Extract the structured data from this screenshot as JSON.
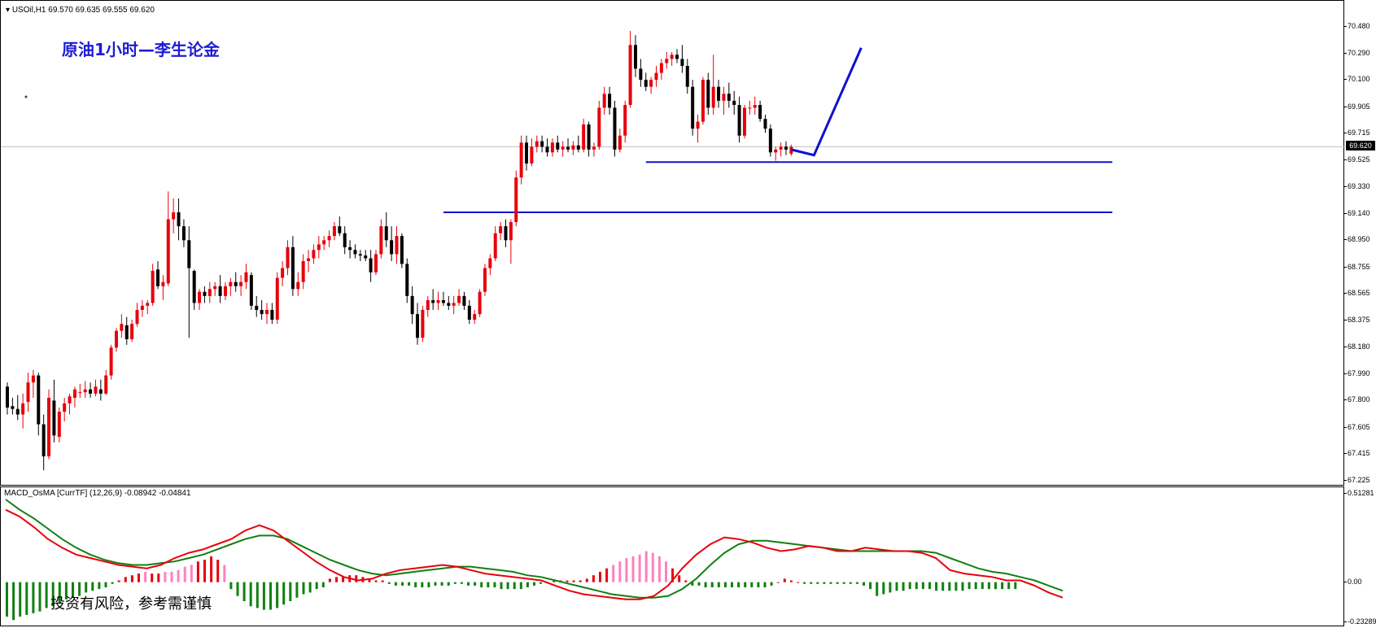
{
  "chart_header": {
    "symbol_label": "USOil,H1",
    "ohlc": "69.570 69.635 69.555 69.620"
  },
  "annotation": {
    "title": "原油1小时—李生论金",
    "risk_note": "投资有风险，参考需谨慎"
  },
  "indicator_header": {
    "label": "MACD_OsMA [CurrTF] (12,26,9) -0.08942 -0.04841"
  },
  "price_axis": {
    "ticks": [
      "70.480",
      "70.290",
      "70.100",
      "69.905",
      "69.715",
      "69.525",
      "69.330",
      "69.140",
      "68.950",
      "68.755",
      "68.565",
      "68.375",
      "68.180",
      "67.990",
      "67.800",
      "67.605",
      "67.415",
      "67.225"
    ],
    "current_price": "69.620"
  },
  "macd_axis": {
    "ticks": [
      "0.51281",
      "0.00",
      "-0.23289"
    ]
  },
  "colors": {
    "bull": "#e8000b",
    "bear": "#000000",
    "drawing": "#1010d0",
    "macd_main": "#e8000b",
    "macd_signal": "#108010",
    "osma_pos": "#e8000b",
    "osma_neg": "#108010",
    "osma_pink": "#ff80c0"
  },
  "chart_data": {
    "type": "candlestick",
    "price_range": [
      67.225,
      70.48
    ],
    "current_price": 69.62,
    "support_lines": [
      69.51,
      69.15
    ],
    "candles": [
      [
        67.9,
        67.93,
        67.7,
        67.75
      ],
      [
        67.76,
        67.82,
        67.7,
        67.74
      ],
      [
        67.74,
        67.84,
        67.66,
        67.7
      ],
      [
        67.7,
        67.85,
        67.6,
        67.78
      ],
      [
        67.79,
        68.0,
        67.72,
        67.93
      ],
      [
        67.93,
        68.02,
        67.82,
        67.98
      ],
      [
        67.98,
        68.0,
        67.55,
        67.63
      ],
      [
        67.63,
        67.7,
        67.3,
        67.4
      ],
      [
        67.4,
        67.88,
        67.38,
        67.82
      ],
      [
        67.8,
        67.95,
        67.5,
        67.55
      ],
      [
        67.54,
        67.75,
        67.5,
        67.72
      ],
      [
        67.72,
        67.82,
        67.65,
        67.78
      ],
      [
        67.78,
        67.85,
        67.7,
        67.83
      ],
      [
        67.82,
        67.9,
        67.75,
        67.88
      ],
      [
        67.86,
        67.92,
        67.82,
        67.86
      ],
      [
        67.86,
        67.94,
        67.82,
        67.88
      ],
      [
        67.88,
        67.93,
        67.82,
        67.85
      ],
      [
        67.85,
        67.95,
        67.83,
        67.9
      ],
      [
        67.88,
        67.95,
        67.8,
        67.85
      ],
      [
        67.85,
        68.02,
        67.84,
        67.98
      ],
      [
        67.98,
        68.2,
        67.95,
        68.18
      ],
      [
        68.18,
        68.32,
        68.15,
        68.3
      ],
      [
        68.3,
        68.42,
        68.25,
        68.35
      ],
      [
        68.34,
        68.4,
        68.2,
        68.24
      ],
      [
        68.24,
        68.38,
        68.22,
        68.35
      ],
      [
        68.35,
        68.5,
        68.33,
        68.45
      ],
      [
        68.45,
        68.52,
        68.4,
        68.48
      ],
      [
        68.48,
        68.52,
        68.42,
        68.5
      ],
      [
        68.5,
        68.78,
        68.48,
        68.73
      ],
      [
        68.74,
        68.8,
        68.6,
        68.62
      ],
      [
        68.62,
        68.7,
        68.52,
        68.65
      ],
      [
        68.64,
        69.3,
        68.62,
        69.1
      ],
      [
        69.1,
        69.25,
        69.0,
        69.15
      ],
      [
        69.15,
        69.25,
        68.95,
        69.05
      ],
      [
        69.05,
        69.1,
        68.9,
        68.95
      ],
      [
        68.95,
        69.05,
        68.25,
        68.75
      ],
      [
        68.73,
        68.74,
        68.45,
        68.5
      ],
      [
        68.5,
        68.6,
        68.45,
        68.58
      ],
      [
        68.58,
        68.62,
        68.5,
        68.55
      ],
      [
        68.55,
        68.65,
        68.5,
        68.6
      ],
      [
        68.6,
        68.65,
        68.55,
        68.62
      ],
      [
        68.62,
        68.7,
        68.5,
        68.55
      ],
      [
        68.55,
        68.65,
        68.52,
        68.62
      ],
      [
        68.62,
        68.68,
        68.55,
        68.65
      ],
      [
        68.65,
        68.72,
        68.58,
        68.62
      ],
      [
        68.62,
        68.7,
        68.55,
        68.65
      ],
      [
        68.65,
        68.78,
        68.6,
        68.72
      ],
      [
        68.7,
        68.72,
        68.45,
        68.48
      ],
      [
        68.48,
        68.55,
        68.4,
        68.45
      ],
      [
        68.45,
        68.52,
        68.38,
        68.42
      ],
      [
        68.42,
        68.5,
        68.35,
        68.45
      ],
      [
        68.45,
        68.5,
        68.35,
        68.38
      ],
      [
        68.38,
        68.72,
        68.35,
        68.68
      ],
      [
        68.68,
        68.8,
        68.62,
        68.75
      ],
      [
        68.75,
        68.95,
        68.7,
        68.9
      ],
      [
        68.9,
        68.98,
        68.55,
        68.6
      ],
      [
        68.6,
        68.72,
        68.55,
        68.65
      ],
      [
        68.65,
        68.85,
        68.6,
        68.8
      ],
      [
        68.8,
        68.88,
        68.72,
        68.82
      ],
      [
        68.82,
        68.92,
        68.78,
        68.88
      ],
      [
        68.88,
        68.98,
        68.82,
        68.92
      ],
      [
        68.92,
        68.98,
        68.88,
        68.95
      ],
      [
        68.95,
        69.02,
        68.9,
        68.98
      ],
      [
        68.98,
        69.08,
        68.95,
        69.05
      ],
      [
        69.05,
        69.12,
        68.98,
        69.0
      ],
      [
        69.0,
        69.05,
        68.85,
        68.9
      ],
      [
        68.9,
        68.95,
        68.82,
        68.88
      ],
      [
        68.88,
        68.92,
        68.82,
        68.85
      ],
      [
        68.85,
        68.88,
        68.8,
        68.84
      ],
      [
        68.84,
        68.88,
        68.8,
        68.82
      ],
      [
        68.82,
        68.88,
        68.65,
        68.72
      ],
      [
        68.72,
        68.88,
        68.7,
        68.85
      ],
      [
        68.85,
        69.1,
        68.82,
        69.05
      ],
      [
        69.05,
        69.15,
        68.9,
        68.95
      ],
      [
        68.95,
        69.05,
        68.8,
        68.85
      ],
      [
        68.85,
        69.05,
        68.78,
        68.98
      ],
      [
        68.98,
        69.0,
        68.75,
        68.78
      ],
      [
        68.78,
        68.82,
        68.5,
        68.55
      ],
      [
        68.55,
        68.62,
        68.35,
        68.42
      ],
      [
        68.42,
        68.5,
        68.2,
        68.25
      ],
      [
        68.25,
        68.48,
        68.22,
        68.45
      ],
      [
        68.45,
        68.55,
        68.4,
        68.52
      ],
      [
        68.52,
        68.6,
        68.45,
        68.5
      ],
      [
        68.5,
        68.58,
        68.45,
        68.52
      ],
      [
        68.52,
        68.58,
        68.48,
        68.5
      ],
      [
        68.5,
        68.55,
        68.45,
        68.48
      ],
      [
        68.48,
        68.55,
        68.42,
        68.5
      ],
      [
        68.5,
        68.6,
        68.48,
        68.55
      ],
      [
        68.55,
        68.58,
        68.45,
        68.48
      ],
      [
        68.48,
        68.52,
        68.35,
        68.38
      ],
      [
        68.38,
        68.45,
        68.35,
        68.42
      ],
      [
        68.42,
        68.6,
        68.4,
        68.58
      ],
      [
        68.58,
        68.78,
        68.55,
        68.75
      ],
      [
        68.75,
        68.85,
        68.7,
        68.82
      ],
      [
        68.82,
        69.05,
        68.8,
        69.0
      ],
      [
        69.0,
        69.08,
        68.95,
        69.05
      ],
      [
        69.05,
        69.1,
        68.9,
        68.95
      ],
      [
        68.95,
        69.1,
        68.78,
        69.08
      ],
      [
        69.08,
        69.45,
        69.05,
        69.4
      ],
      [
        69.4,
        69.7,
        69.35,
        69.65
      ],
      [
        69.65,
        69.7,
        69.45,
        69.5
      ],
      [
        69.5,
        69.68,
        69.48,
        69.62
      ],
      [
        69.62,
        69.7,
        69.58,
        69.66
      ],
      [
        69.66,
        69.7,
        69.58,
        69.62
      ],
      [
        69.62,
        69.68,
        69.55,
        69.58
      ],
      [
        69.58,
        69.68,
        69.55,
        69.65
      ],
      [
        69.65,
        69.7,
        69.58,
        69.6
      ],
      [
        69.6,
        69.66,
        69.55,
        69.62
      ],
      [
        69.62,
        69.68,
        69.58,
        69.6
      ],
      [
        69.6,
        69.66,
        69.56,
        69.63
      ],
      [
        69.63,
        69.7,
        69.58,
        69.6
      ],
      [
        69.6,
        69.82,
        69.58,
        69.78
      ],
      [
        69.78,
        69.8,
        69.55,
        69.6
      ],
      [
        69.6,
        69.65,
        69.55,
        69.62
      ],
      [
        69.62,
        69.95,
        69.6,
        69.9
      ],
      [
        69.9,
        70.05,
        69.85,
        70.0
      ],
      [
        70.0,
        70.05,
        69.85,
        69.9
      ],
      [
        69.9,
        69.95,
        69.55,
        69.6
      ],
      [
        69.6,
        69.75,
        69.58,
        69.7
      ],
      [
        69.7,
        69.95,
        69.65,
        69.92
      ],
      [
        69.92,
        70.45,
        69.9,
        70.35
      ],
      [
        70.35,
        70.42,
        70.12,
        70.18
      ],
      [
        70.18,
        70.25,
        70.05,
        70.1
      ],
      [
        70.1,
        70.15,
        70.02,
        70.05
      ],
      [
        70.05,
        70.12,
        70.0,
        70.1
      ],
      [
        70.1,
        70.2,
        70.05,
        70.15
      ],
      [
        70.15,
        70.25,
        70.1,
        70.22
      ],
      [
        70.22,
        70.3,
        70.18,
        70.25
      ],
      [
        70.25,
        70.3,
        70.2,
        70.28
      ],
      [
        70.28,
        70.32,
        70.22,
        70.25
      ],
      [
        70.25,
        70.35,
        70.15,
        70.2
      ],
      [
        70.2,
        70.25,
        70.0,
        70.05
      ],
      [
        70.05,
        70.1,
        69.7,
        69.75
      ],
      [
        69.75,
        69.85,
        69.65,
        69.8
      ],
      [
        69.8,
        70.12,
        69.78,
        70.1
      ],
      [
        70.1,
        70.15,
        69.85,
        69.9
      ],
      [
        69.9,
        70.28,
        69.85,
        70.05
      ],
      [
        70.05,
        70.1,
        69.9,
        69.95
      ],
      [
        69.95,
        70.05,
        69.85,
        70.0
      ],
      [
        70.0,
        70.08,
        69.9,
        69.95
      ],
      [
        69.95,
        70.02,
        69.85,
        69.92
      ],
      [
        69.92,
        69.98,
        69.65,
        69.7
      ],
      [
        69.7,
        69.92,
        69.68,
        69.9
      ],
      [
        69.9,
        69.95,
        69.85,
        69.9
      ],
      [
        69.9,
        69.98,
        69.85,
        69.92
      ],
      [
        69.92,
        69.95,
        69.8,
        69.82
      ],
      [
        69.82,
        69.85,
        69.72,
        69.75
      ],
      [
        69.75,
        69.78,
        69.55,
        69.58
      ],
      [
        69.58,
        69.62,
        69.52,
        69.6
      ],
      [
        69.6,
        69.65,
        69.55,
        69.62
      ],
      [
        69.62,
        69.66,
        69.56,
        69.6
      ],
      [
        69.57,
        69.635,
        69.555,
        69.62
      ]
    ],
    "macd_range": [
      -0.23289,
      0.51281
    ],
    "macd_main": [
      0.42,
      0.38,
      0.32,
      0.25,
      0.2,
      0.16,
      0.14,
      0.12,
      0.1,
      0.09,
      0.08,
      0.1,
      0.14,
      0.17,
      0.19,
      0.22,
      0.25,
      0.3,
      0.33,
      0.3,
      0.24,
      0.18,
      0.12,
      0.07,
      0.03,
      0.01,
      0.02,
      0.05,
      0.07,
      0.08,
      0.09,
      0.1,
      0.09,
      0.07,
      0.05,
      0.04,
      0.03,
      0.02,
      0.01,
      -0.02,
      -0.05,
      -0.07,
      -0.08,
      -0.09,
      -0.1,
      -0.1,
      -0.08,
      -0.02,
      0.08,
      0.16,
      0.22,
      0.26,
      0.25,
      0.23,
      0.2,
      0.18,
      0.19,
      0.21,
      0.2,
      0.18,
      0.18,
      0.2,
      0.19,
      0.18,
      0.18,
      0.17,
      0.14,
      0.07,
      0.05,
      0.04,
      0.03,
      0.01,
      0.01,
      -0.02,
      -0.06,
      -0.09
    ],
    "macd_signal": [
      0.48,
      0.42,
      0.37,
      0.31,
      0.25,
      0.2,
      0.16,
      0.13,
      0.11,
      0.1,
      0.1,
      0.11,
      0.12,
      0.14,
      0.16,
      0.19,
      0.22,
      0.25,
      0.27,
      0.27,
      0.25,
      0.21,
      0.17,
      0.13,
      0.1,
      0.07,
      0.05,
      0.04,
      0.05,
      0.06,
      0.07,
      0.08,
      0.09,
      0.09,
      0.08,
      0.07,
      0.06,
      0.04,
      0.03,
      0.01,
      -0.01,
      -0.03,
      -0.05,
      -0.07,
      -0.08,
      -0.09,
      -0.09,
      -0.08,
      -0.04,
      0.02,
      0.1,
      0.17,
      0.22,
      0.24,
      0.24,
      0.23,
      0.22,
      0.21,
      0.2,
      0.19,
      0.18,
      0.18,
      0.18,
      0.18,
      0.18,
      0.18,
      0.17,
      0.14,
      0.11,
      0.08,
      0.06,
      0.05,
      0.03,
      0.01,
      -0.02,
      -0.05
    ],
    "osma": [
      -0.2,
      -0.22,
      -0.2,
      -0.19,
      -0.18,
      -0.17,
      -0.15,
      -0.14,
      -0.12,
      -0.1,
      -0.09,
      -0.08,
      -0.06,
      -0.05,
      -0.04,
      -0.03,
      -0.01,
      0.01,
      0.03,
      0.04,
      0.05,
      0.06,
      0.05,
      0.05,
      0.06,
      0.06,
      0.07,
      0.09,
      0.1,
      0.12,
      0.13,
      0.15,
      0.13,
      0.1,
      -0.04,
      -0.08,
      -0.11,
      -0.14,
      -0.15,
      -0.16,
      -0.16,
      -0.15,
      -0.13,
      -0.11,
      -0.09,
      -0.07,
      -0.06,
      -0.04,
      -0.03,
      0.02,
      0.03,
      0.03,
      0.04,
      0.04,
      0.03,
      0.02,
      0.01,
      0.01,
      -0.01,
      -0.02,
      -0.02,
      -0.02,
      -0.03,
      -0.03,
      -0.03,
      -0.02,
      -0.02,
      -0.02,
      -0.01,
      -0.01,
      -0.02,
      -0.02,
      -0.03,
      -0.03,
      -0.03,
      -0.04,
      -0.04,
      -0.04,
      -0.04,
      -0.03,
      -0.02,
      -0.01,
      0.0,
      0.01,
      0.01,
      0.01,
      0.01,
      0.01,
      0.02,
      0.04,
      0.06,
      0.08,
      0.1,
      0.12,
      0.14,
      0.15,
      0.16,
      0.18,
      0.17,
      0.15,
      0.12,
      0.08,
      0.04,
      0.01,
      -0.02,
      -0.02,
      -0.03,
      -0.03,
      -0.03,
      -0.03,
      -0.03,
      -0.03,
      -0.03,
      -0.03,
      -0.03,
      -0.03,
      -0.02,
      0.0,
      0.02,
      0.01,
      0.0,
      -0.01,
      -0.01,
      -0.01,
      -0.01,
      -0.01,
      -0.01,
      -0.01,
      -0.01,
      -0.01,
      -0.02,
      -0.04,
      -0.08,
      -0.07,
      -0.06,
      -0.05,
      -0.05,
      -0.04,
      -0.04,
      -0.04,
      -0.04,
      -0.05,
      -0.05,
      -0.05,
      -0.05,
      -0.05,
      -0.04,
      -0.04,
      -0.04,
      -0.04,
      -0.04,
      -0.04,
      -0.04,
      -0.04
    ]
  }
}
